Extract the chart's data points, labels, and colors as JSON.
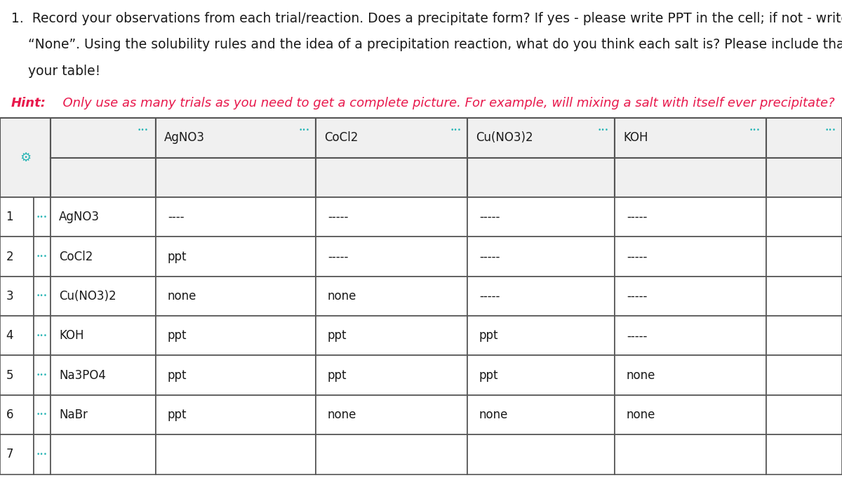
{
  "hint_bold": "Hint:",
  "hint_italic": "  Only use as many trials as you need to get a complete picture. For example, will mixing a salt with itself ever precipitate?",
  "hint_color": "#e8174b",
  "col_headers": [
    "AgNO3",
    "CoCl2",
    "Cu(NO3)2",
    "KOH",
    ""
  ],
  "row_labels": [
    "AgNO3",
    "CoCl2",
    "Cu(NO3)2",
    "KOH",
    "Na3PO4",
    "NaBr",
    ""
  ],
  "row_numbers": [
    "1",
    "2",
    "3",
    "4",
    "5",
    "6",
    "7"
  ],
  "table_data": [
    [
      "----",
      "-----",
      "-----",
      "-----",
      ""
    ],
    [
      "ppt",
      "-----",
      "-----",
      "-----",
      ""
    ],
    [
      "none",
      "none",
      "-----",
      "-----",
      ""
    ],
    [
      "ppt",
      "ppt",
      "ppt",
      "-----",
      ""
    ],
    [
      "ppt",
      "ppt",
      "ppt",
      "none",
      ""
    ],
    [
      "ppt",
      "none",
      "none",
      "none",
      ""
    ],
    [
      "",
      "",
      "",
      "",
      ""
    ]
  ],
  "header_bg": "#f0f0f0",
  "data_bg_white": "#ffffff",
  "gear_color": "#29b6b6",
  "dots_color": "#29b6b6",
  "border_color": "#555555",
  "text_color": "#1a1a1a",
  "font_size_title": 13.5,
  "font_size_hint": 13.0,
  "font_size_table": 12.0
}
